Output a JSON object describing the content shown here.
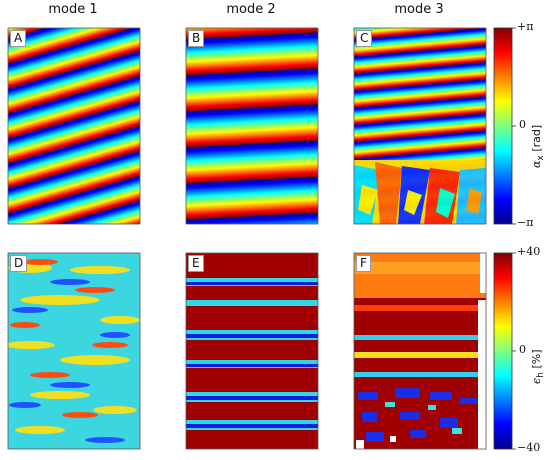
{
  "columns": [
    "mode 1",
    "mode 2",
    "mode 3"
  ],
  "panel_labels": [
    "A",
    "B",
    "C",
    "D",
    "E",
    "F"
  ],
  "colorbar_top": {
    "symbol": "α",
    "subscript": "x",
    "unit": "[rad]",
    "ticks": [
      "+π",
      "0",
      "−π"
    ]
  },
  "colorbar_bottom": {
    "symbol": "ϵ",
    "subscript": "h",
    "unit": "[%]",
    "ticks": [
      "+40",
      "0",
      "−40"
    ]
  },
  "colormap": "jet"
}
